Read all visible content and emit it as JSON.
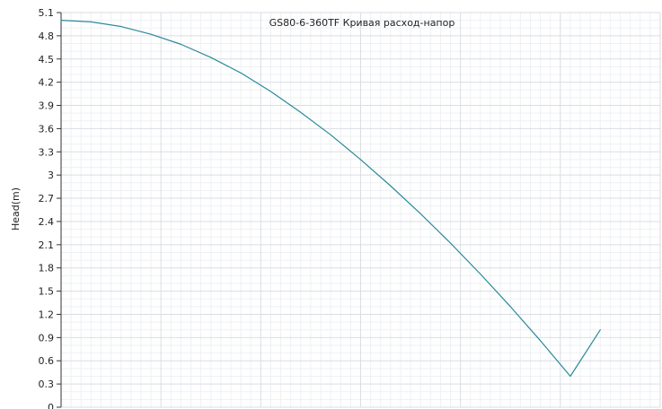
{
  "chart_data": {
    "type": "line",
    "title": "GS80-6-360TF Кривая расход-напор",
    "xlabel": "",
    "ylabel": "Head(m)",
    "ylim": [
      0,
      5.1
    ],
    "xlim": [
      0,
      1
    ],
    "y_ticks": [
      "0",
      "0.3",
      "0.6",
      "0.9",
      "1.2",
      "1.5",
      "1.8",
      "2.1",
      "2.4",
      "2.7",
      "3",
      "3.3",
      "3.6",
      "3.9",
      "4.2",
      "4.5",
      "4.8",
      "5.1"
    ],
    "grid": true,
    "series": [
      {
        "color": "#2a8a9a",
        "x": [
          0,
          0.05,
          0.1,
          0.15,
          0.2,
          0.25,
          0.3,
          0.35,
          0.4,
          0.45,
          0.5,
          0.55,
          0.6,
          0.65,
          0.7,
          0.75,
          0.8,
          0.85,
          0.9
        ],
        "y": [
          5.0,
          4.98,
          4.92,
          4.82,
          4.69,
          4.52,
          4.32,
          4.08,
          3.81,
          3.52,
          3.2,
          2.86,
          2.5,
          2.12,
          1.72,
          1.3,
          0.86,
          0.4,
          1.0
        ]
      }
    ]
  }
}
